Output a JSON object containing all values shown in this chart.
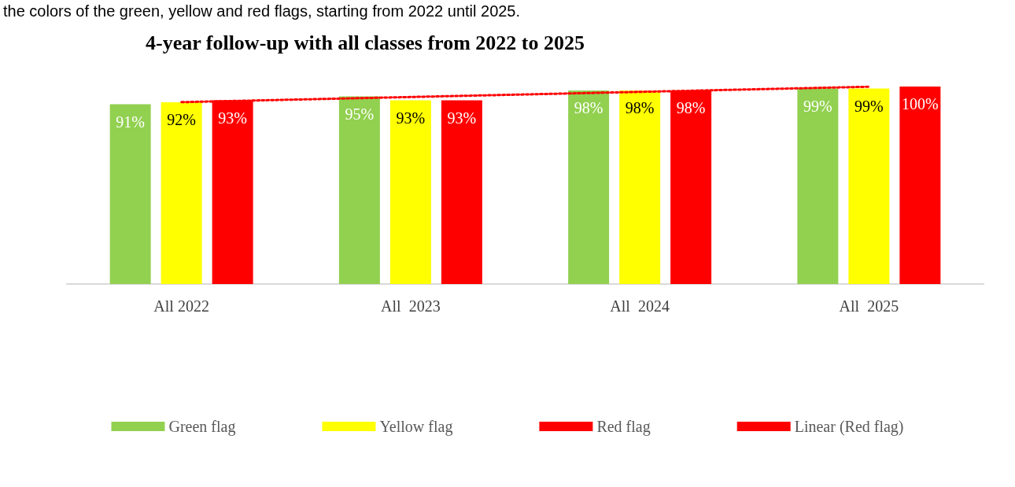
{
  "chart_data": {
    "type": "bar",
    "title": "4-year follow-up with all classes from 2022 to 2025",
    "annotations": [
      "the colors of the green, yellow and red flags, starting from 2022 until 2025."
    ],
    "categories": [
      "All 2022",
      "All  2023",
      "All  2024",
      "All  2025"
    ],
    "legend": "bottom",
    "grid": false,
    "ylim": [
      0,
      100
    ],
    "series": [
      {
        "name": "Green flag",
        "color": "#92d050",
        "values": [
          91,
          95,
          98,
          99
        ],
        "value_labels": [
          "91%",
          "95%",
          "98%",
          "99%"
        ]
      },
      {
        "name": "Yellow flag",
        "color": "#ffff00",
        "values": [
          92,
          93,
          98,
          99
        ],
        "value_labels": [
          "92%",
          "93%",
          "98%",
          "99%"
        ]
      },
      {
        "name": "Red flag",
        "color": "#ff0000",
        "values": [
          93,
          93,
          98,
          100
        ],
        "value_labels": [
          "93%",
          "93%",
          "98%",
          "100%"
        ]
      },
      {
        "name": "Linear (Red flag)",
        "type": "line",
        "color": "#ff0000",
        "line_style": "dotted",
        "marker": "none",
        "x": [
          "All 2022",
          "All  2023",
          "All  2024",
          "All  2025"
        ],
        "values": [
          92.1,
          94.7,
          97.3,
          99.9
        ]
      }
    ]
  }
}
